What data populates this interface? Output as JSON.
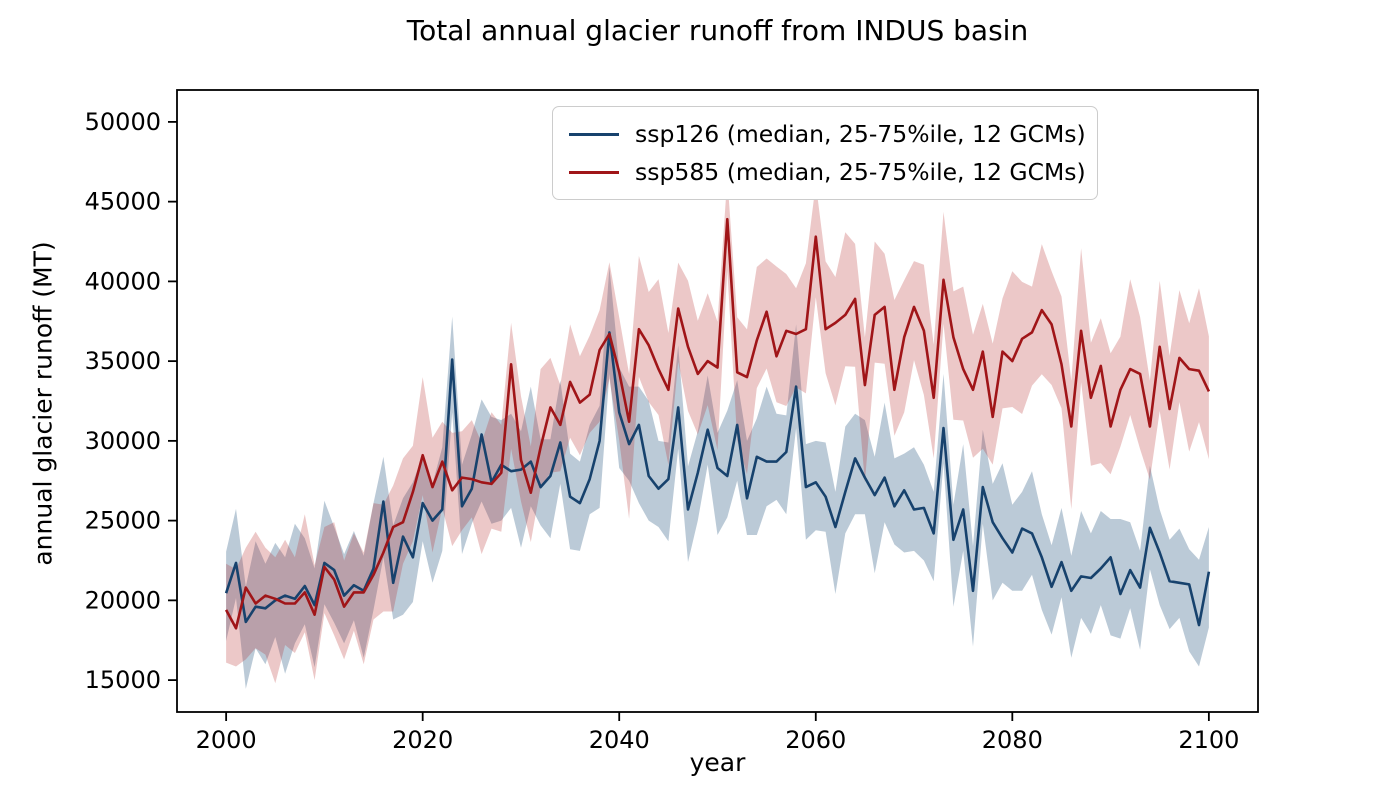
{
  "chart_data": {
    "type": "line",
    "title": "Total annual glacier runoff from INDUS basin",
    "xlabel": "year",
    "ylabel": "annual glacier runoff (MT)",
    "xlim": [
      1995,
      2105
    ],
    "ylim": [
      13000,
      52000
    ],
    "xticks": [
      2000,
      2020,
      2040,
      2060,
      2080,
      2100
    ],
    "yticks": [
      15000,
      20000,
      25000,
      30000,
      35000,
      40000,
      45000,
      50000
    ],
    "x_start": 2000,
    "x_step": 1,
    "grid": false,
    "legend_position": "upper right",
    "band_clamp": [
      14000,
      46500
    ],
    "axis_color": "#000000",
    "series": [
      {
        "name": "ssp126 (median, 25-75%ile, 12 GCMs)",
        "scenario": "ssp126",
        "stat": "median, 25-75%ile, 12 GCMs",
        "color": "#17426d",
        "band_color": "rgba(31,78,121,0.30)",
        "median": [
          20450,
          22350,
          18650,
          19600,
          19500,
          20000,
          20300,
          20100,
          20900,
          19700,
          22350,
          21900,
          20300,
          20950,
          20600,
          22000,
          26200,
          21100,
          24000,
          22700,
          26100,
          25000,
          25700,
          35100,
          25900,
          27000,
          30400,
          27400,
          28500,
          28100,
          28200,
          28700,
          27100,
          27800,
          29900,
          26500,
          26100,
          27600,
          30000,
          36800,
          31800,
          29800,
          31000,
          27800,
          27000,
          27600,
          32100,
          25700,
          28000,
          30700,
          28300,
          27800,
          31000,
          26400,
          29000,
          28700,
          28700,
          29300,
          33400,
          27100,
          27400,
          26500,
          24600,
          26800,
          28900,
          27700,
          26600,
          27700,
          25900,
          26900,
          25700,
          25800,
          24200,
          30800,
          23800,
          25700,
          20600,
          27100,
          24900,
          23900,
          23000,
          24500,
          24200,
          22700,
          20850,
          22400,
          20600,
          21500,
          21400,
          22000,
          22700,
          20400,
          21900,
          20800,
          24550,
          23000,
          21200,
          21100,
          21000,
          18450,
          21800
        ],
        "band_upper_offsets": [
          2600,
          3400,
          2200,
          4100,
          2800,
          3600,
          2400,
          4700,
          3000,
          2300,
          3900,
          2700
        ],
        "band_lower_offsets": [
          3000,
          2200,
          4200,
          2600,
          3500,
          2300,
          4900,
          2800,
          2400,
          3900,
          2600,
          3300
        ],
        "band_widen_after": 2200,
        "band_widen_factor": 1.0
      },
      {
        "name": "ssp585 (median, 25-75%ile, 12 GCMs)",
        "scenario": "ssp585",
        "stat": "median, 25-75%ile, 12 GCMs",
        "color": "#a01518",
        "band_color": "rgba(178,34,34,0.25)",
        "median": [
          19400,
          18250,
          20800,
          19800,
          20300,
          20100,
          19800,
          19800,
          20500,
          19100,
          22100,
          21300,
          19600,
          20500,
          20500,
          21600,
          23000,
          24600,
          24900,
          26800,
          29100,
          27100,
          28700,
          26900,
          27700,
          27600,
          27400,
          27300,
          28000,
          34800,
          28800,
          26750,
          29600,
          32100,
          31000,
          33700,
          32400,
          32900,
          35700,
          36700,
          34300,
          31200,
          37000,
          36000,
          34500,
          33200,
          38300,
          35900,
          34200,
          35000,
          34600,
          43900,
          34300,
          34000,
          36300,
          38100,
          35300,
          36900,
          36700,
          37000,
          42800,
          37000,
          37400,
          37900,
          38900,
          33500,
          37900,
          38400,
          33200,
          36500,
          38400,
          36900,
          32700,
          40100,
          36500,
          34500,
          33200,
          35600,
          31500,
          35600,
          35000,
          36400,
          36800,
          38200,
          37300,
          34800,
          30900,
          36900,
          32700,
          34700,
          30900,
          33200,
          34500,
          34200,
          30900,
          35900,
          32000,
          35200,
          34500,
          34400,
          33100
        ],
        "band_upper_offsets": [
          2900,
          3700,
          2500,
          4500,
          3000,
          2600,
          4000,
          2900,
          4900,
          3100,
          2500,
          3600
        ],
        "band_lower_offsets": [
          3300,
          2400,
          4500,
          2800,
          3700,
          5300,
          2600,
          3100,
          2500,
          4100,
          2900,
          3500
        ],
        "band_widen_after": 2040,
        "band_widen_factor": 1.15
      }
    ]
  }
}
